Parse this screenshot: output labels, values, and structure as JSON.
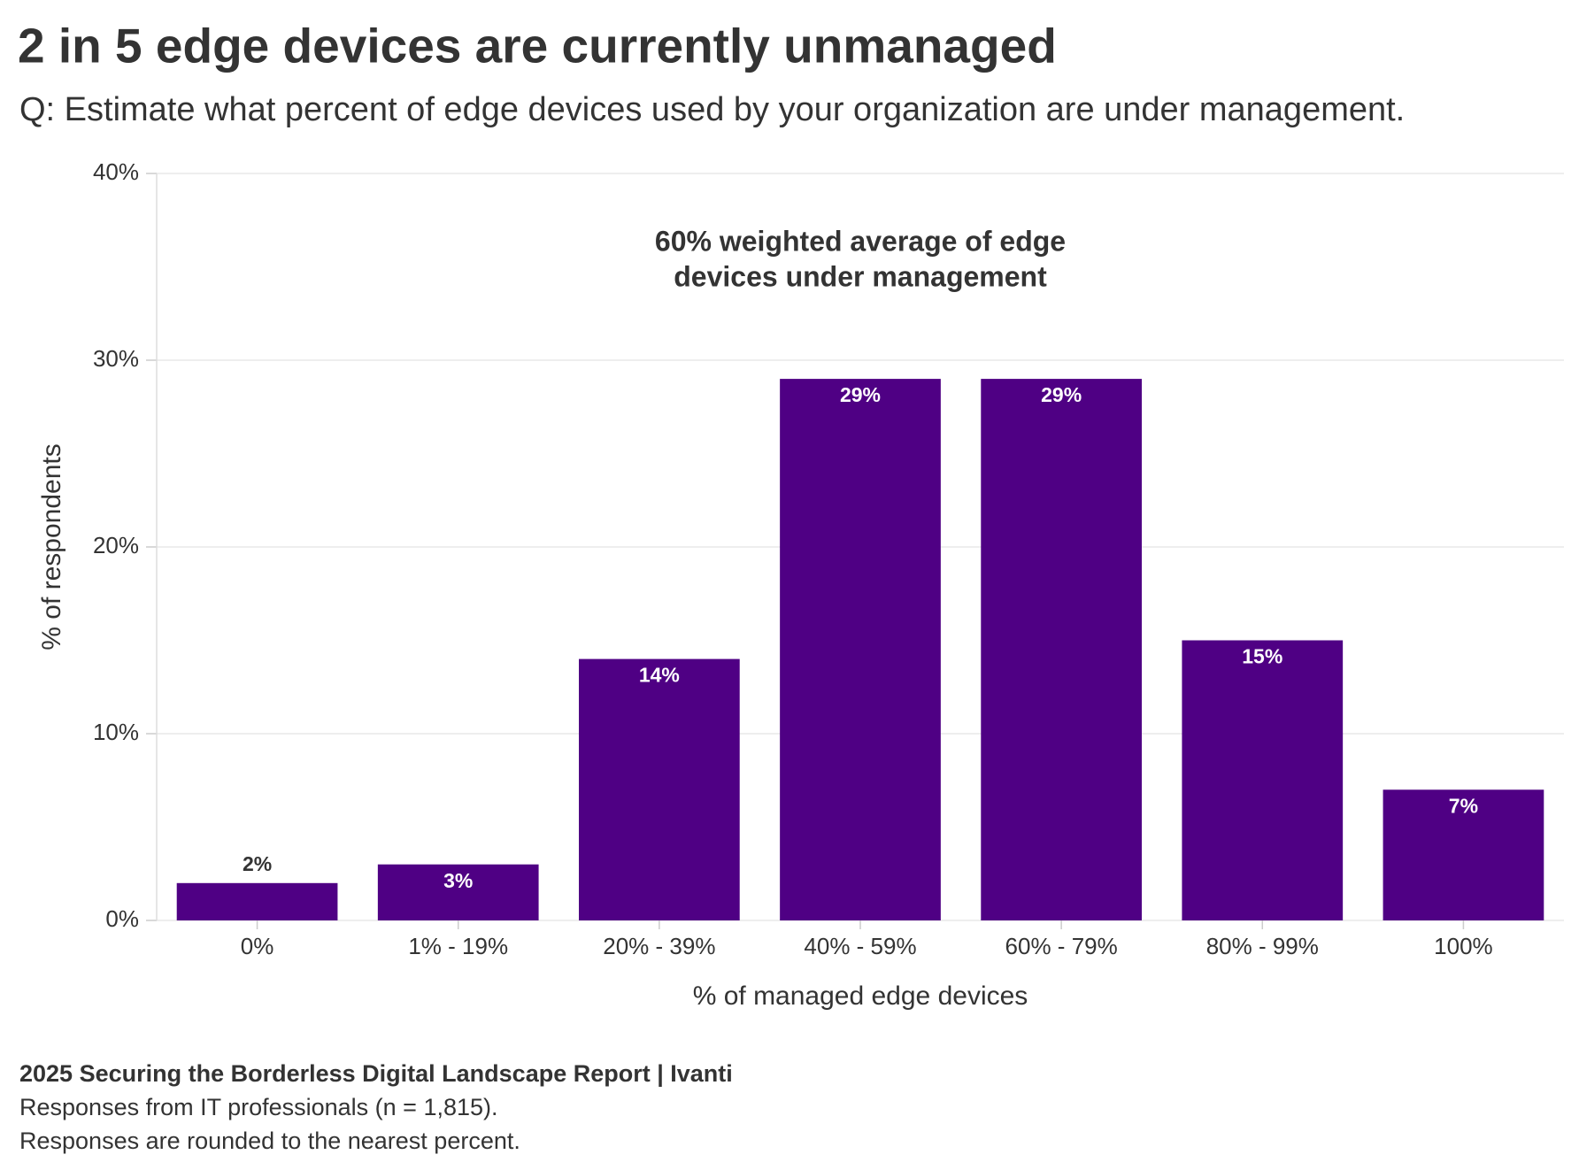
{
  "chart_data": {
    "type": "bar",
    "title": "2 in 5 edge devices are currently unmanaged",
    "subtitle": "Q: Estimate what percent of edge devices used by your organization are under management.",
    "annotation": [
      "60% weighted average of edge",
      "devices under management"
    ],
    "x_label": "% of managed edge devices",
    "y_label": "% of respondents",
    "categories": [
      "0%",
      "1% - 19%",
      "20% - 39%",
      "40% - 59%",
      "60% - 79%",
      "80% - 99%",
      "100%"
    ],
    "values": [
      2,
      3,
      14,
      29,
      29,
      15,
      7
    ],
    "value_labels": [
      "2%",
      "3%",
      "14%",
      "29%",
      "29%",
      "15%",
      "7%"
    ],
    "color": "#4f0084",
    "ylim": [
      0,
      40
    ],
    "yticks": [
      {
        "value": 0,
        "label": "0%"
      },
      {
        "value": 10,
        "label": "10%"
      },
      {
        "value": 20,
        "label": "20%"
      },
      {
        "value": 30,
        "label": "30%"
      },
      {
        "value": 40,
        "label": "40%"
      }
    ],
    "grid": true,
    "source": "2025 Securing the Borderless Digital Landscape Report | Ivanti",
    "notes": [
      "Responses from IT professionals (n = 1,815).",
      "Responses are rounded to the nearest percent."
    ]
  }
}
